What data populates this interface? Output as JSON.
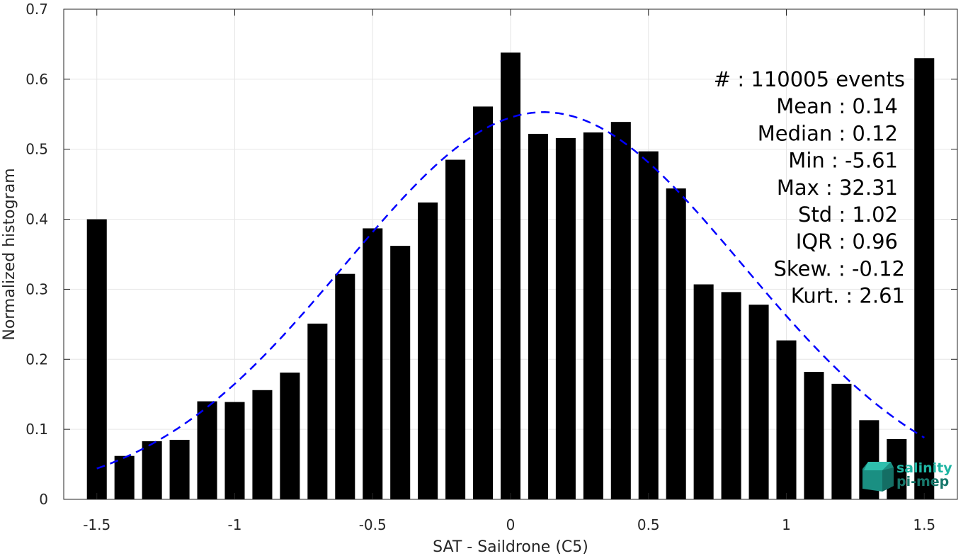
{
  "chart_data": {
    "type": "bar",
    "xlabel": "SAT - Saildrone (C5)",
    "ylabel": "Normalized histogram",
    "xlim": [
      -1.62,
      1.62
    ],
    "ylim": [
      0,
      0.7
    ],
    "grid": true,
    "x": [
      -1.5,
      -1.4,
      -1.3,
      -1.2,
      -1.1,
      -1.0,
      -0.9,
      -0.8,
      -0.7,
      -0.6,
      -0.5,
      -0.4,
      -0.3,
      -0.2,
      -0.1,
      0.0,
      0.1,
      0.2,
      0.3,
      0.4,
      0.5,
      0.6,
      0.7,
      0.8,
      0.9,
      1.0,
      1.1,
      1.2,
      1.3,
      1.4,
      1.5
    ],
    "values": [
      0.4,
      0.062,
      0.083,
      0.085,
      0.14,
      0.139,
      0.156,
      0.181,
      0.251,
      0.322,
      0.387,
      0.362,
      0.424,
      0.485,
      0.561,
      0.638,
      0.522,
      0.516,
      0.524,
      0.539,
      0.497,
      0.444,
      0.307,
      0.296,
      0.278,
      0.227,
      0.182,
      0.165,
      0.113,
      0.086,
      0.63
    ],
    "fit_curve": {
      "type": "gaussian",
      "mean": 0.12,
      "sigma": 0.72,
      "peak": 0.553,
      "x_range": [
        -1.5,
        1.5
      ],
      "color": "#0000ff",
      "style": "dashed"
    },
    "bar_color": "#000000",
    "xticks": [
      "-1.5",
      "-1",
      "-0.5",
      "0",
      "0.5",
      "1",
      "1.5"
    ],
    "yticks": [
      "0",
      "0.1",
      "0.2",
      "0.3",
      "0.4",
      "0.5",
      "0.6",
      "0.7"
    ],
    "stats": [
      "#  : 110005 events",
      "Mean : 0.14",
      "Median : 0.12",
      "Min : -5.61",
      "Max : 32.31",
      "Std : 1.02",
      "IQR : 0.96",
      "Skew. : -0.12",
      "Kurt. : 2.61"
    ]
  },
  "logo": {
    "line1": "salinity",
    "line2": "pi-mep",
    "color1": "#1fb5a3",
    "color2": "#17776b"
  }
}
